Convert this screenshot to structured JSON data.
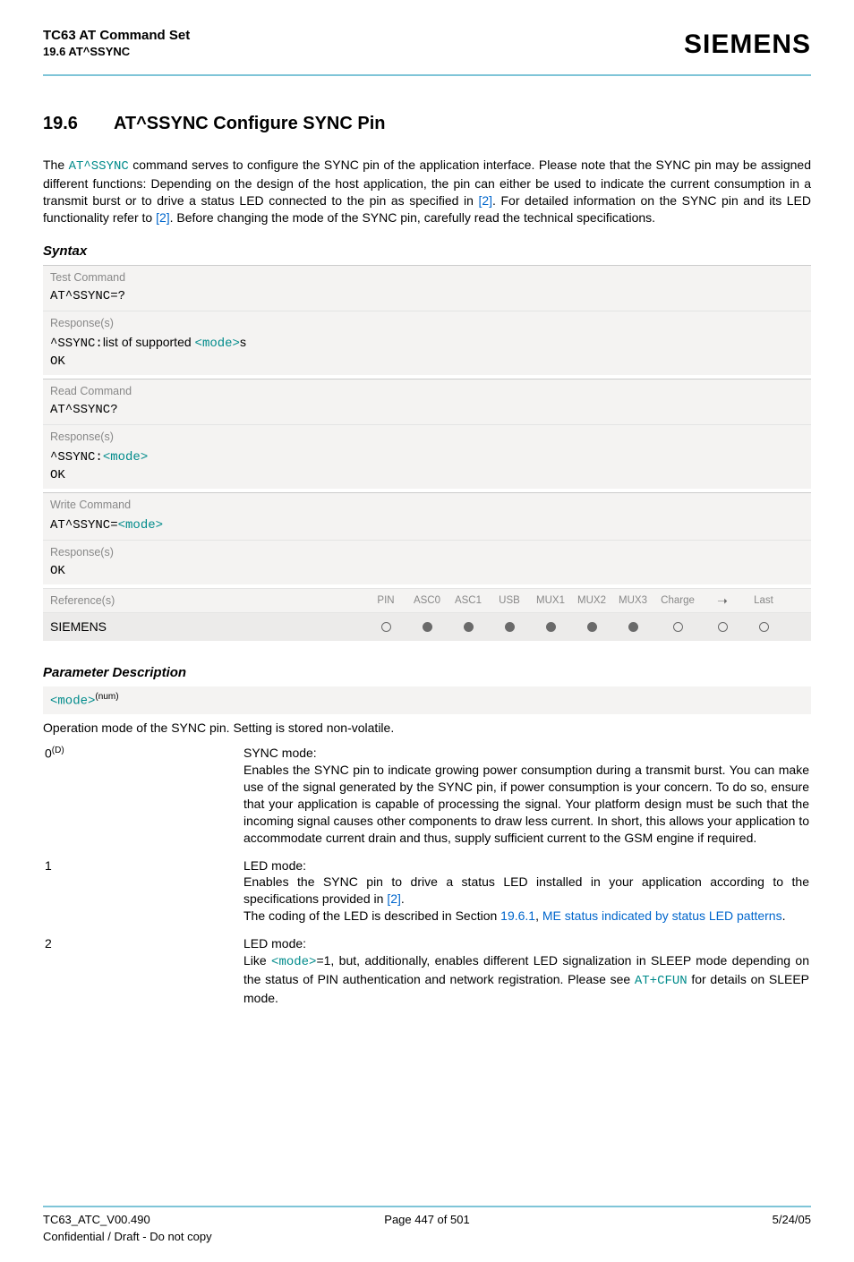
{
  "header": {
    "doc_title": "TC63 AT Command Set",
    "section_ref": "19.6 AT^SSYNC",
    "brand": "SIEMENS"
  },
  "colors": {
    "rule": "#7fc5d8",
    "link_blue": "#0066cc",
    "link_teal": "#008b8b",
    "box_bg": "#f4f3f2",
    "box_bg_dark": "#ecebea",
    "muted": "#888888",
    "dot": "#6a6a6a"
  },
  "section": {
    "number": "19.6",
    "title": "AT^SSYNC   Configure SYNC Pin"
  },
  "intro": {
    "pre": "The ",
    "cmd": "AT^SSYNC",
    "mid1": " command serves to configure the SYNC pin of the application interface. Please note that the SYNC pin may be assigned different functions: Depending on the design of the host application, the pin can either be used to indicate the current consumption in a transmit burst or to drive a status LED connected to the pin as specified in ",
    "ref1": "[2]",
    "mid2": ". For detailed information on the SYNC pin and its LED functionality refer to ",
    "ref2": "[2]",
    "post": ". Before changing the mode of the SYNC pin, carefully read the technical specifications."
  },
  "syntax_header": "Syntax",
  "syntax": {
    "test": {
      "label": "Test Command",
      "cmd": "AT^SSYNC=?",
      "resp_label": "Response(s)",
      "resp_prefix": "^SSYNC:",
      "resp_text": "list of supported ",
      "resp_mode": "<mode>",
      "resp_suffix": "s",
      "ok": "OK"
    },
    "read": {
      "label": "Read Command",
      "cmd": "AT^SSYNC?",
      "resp_label": "Response(s)",
      "resp_prefix": "^SSYNC:",
      "resp_mode": "<mode>",
      "ok": "OK"
    },
    "write": {
      "label": "Write Command",
      "cmd_pre": "AT^SSYNC=",
      "cmd_mode": "<mode>",
      "resp_label": "Response(s)",
      "ok": "OK"
    }
  },
  "reference": {
    "label": "Reference(s)",
    "row_label": "SIEMENS",
    "columns": [
      "PIN",
      "ASC0",
      "ASC1",
      "USB",
      "MUX1",
      "MUX2",
      "MUX3",
      "Charge",
      "➝",
      "Last"
    ],
    "dots": [
      "empty",
      "filled",
      "filled",
      "filled",
      "filled",
      "filled",
      "filled",
      "empty",
      "empty",
      "empty"
    ]
  },
  "param_header": "Parameter Description",
  "param_name_pre": "<mode>",
  "param_name_sup": "(num)",
  "param_line": "Operation mode of the SYNC pin. Setting is stored non-volatile.",
  "params": {
    "p0": {
      "key": "0",
      "key_sup": "(D)",
      "title": "SYNC mode:",
      "body": "Enables the SYNC pin to indicate growing power consumption during a transmit burst. You can make use of the signal generated by the SYNC pin, if power consumption is your concern. To do so, ensure that your application is capable of processing the signal. Your platform design must be such that the incoming signal causes other components to draw less current. In short, this allows your application to accommodate current drain and thus, supply sufficient current to the GSM engine if required."
    },
    "p1": {
      "key": "1",
      "title": "LED mode:",
      "l1": "Enables the SYNC pin to drive a status LED installed in your application according to the specifications provided in ",
      "ref": "[2]",
      "l1b": ".",
      "l2a": "The coding of the LED is described in Section ",
      "secnum": "19.6.1",
      "l2b": ", ",
      "seclink": "ME status indicated by status LED patterns",
      "l2c": "."
    },
    "p2": {
      "key": "2",
      "title": "LED mode:",
      "l1a": "Like ",
      "mode": "<mode>",
      "l1b": "=1, but, additionally, enables different LED signalization in SLEEP mode depending on the status of PIN authentication and network registration. Please see ",
      "cfun": "AT+CFUN",
      "l1c": " for details on SLEEP mode."
    }
  },
  "footer": {
    "left": "TC63_ATC_V00.490",
    "center": "Page 447 of 501",
    "right": "5/24/05",
    "sub": "Confidential / Draft - Do not copy"
  }
}
